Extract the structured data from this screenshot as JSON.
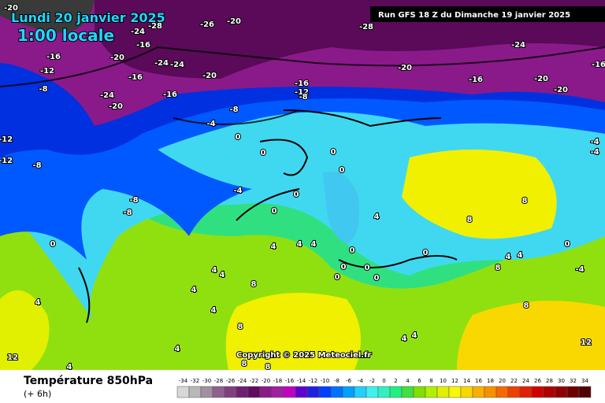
{
  "header": {
    "date": "Lundi 20 janvier 2025",
    "time": "1:00 locale"
  },
  "run": "Run GFS 18 Z du Dimanche 19 janvier 2025",
  "copyright": "Copyright © 2025 Meteociel.fr",
  "legend": {
    "title": "Température 850hPa",
    "step": "(+ 6h)"
  },
  "contour_labels": [
    -20,
    -24,
    -28,
    -26,
    -20,
    -28,
    -24,
    -16,
    -12,
    -8,
    -20,
    -16,
    -24,
    -24,
    -16,
    -20,
    -24,
    -20,
    -16,
    -16,
    -12,
    -8,
    -20,
    -16,
    -20,
    -20,
    -16,
    -8,
    -4,
    0,
    0,
    0,
    0,
    -4,
    0,
    0,
    -8,
    -8,
    4,
    8,
    8,
    4,
    4,
    4,
    0,
    0,
    4,
    4,
    0,
    -4,
    0,
    0,
    0,
    0,
    4,
    4,
    8,
    4,
    4,
    8,
    4,
    4,
    12,
    4,
    8,
    8,
    4,
    4,
    8,
    8,
    12,
    -12,
    -12,
    -8,
    0,
    -4,
    -4
  ],
  "scale": {
    "labels": [
      -34,
      -32,
      -30,
      -28,
      -26,
      -24,
      -22,
      -20,
      -18,
      -16,
      -14,
      -12,
      -10,
      -8,
      -6,
      -4,
      -2,
      0,
      2,
      4,
      6,
      8,
      10,
      12,
      14,
      16,
      18,
      20,
      22,
      24,
      26,
      28,
      30,
      32,
      34
    ],
    "colors": [
      "#d8d8d8",
      "#b8b8b8",
      "#a090a0",
      "#906090",
      "#804080",
      "#702070",
      "#600a60",
      "#8a1a8a",
      "#a020a0",
      "#c000c0",
      "#6000d0",
      "#2020e0",
      "#0040ff",
      "#0070ff",
      "#00a0ff",
      "#20d0ff",
      "#40f0f0",
      "#30f0c0",
      "#20f080",
      "#40e040",
      "#80e000",
      "#b0f000",
      "#e0f000",
      "#f8f800",
      "#f8d800",
      "#f8b000",
      "#f89000",
      "#f86800",
      "#f04000",
      "#e02000",
      "#d00000",
      "#b00000",
      "#900000",
      "#700000",
      "#500000"
    ]
  }
}
